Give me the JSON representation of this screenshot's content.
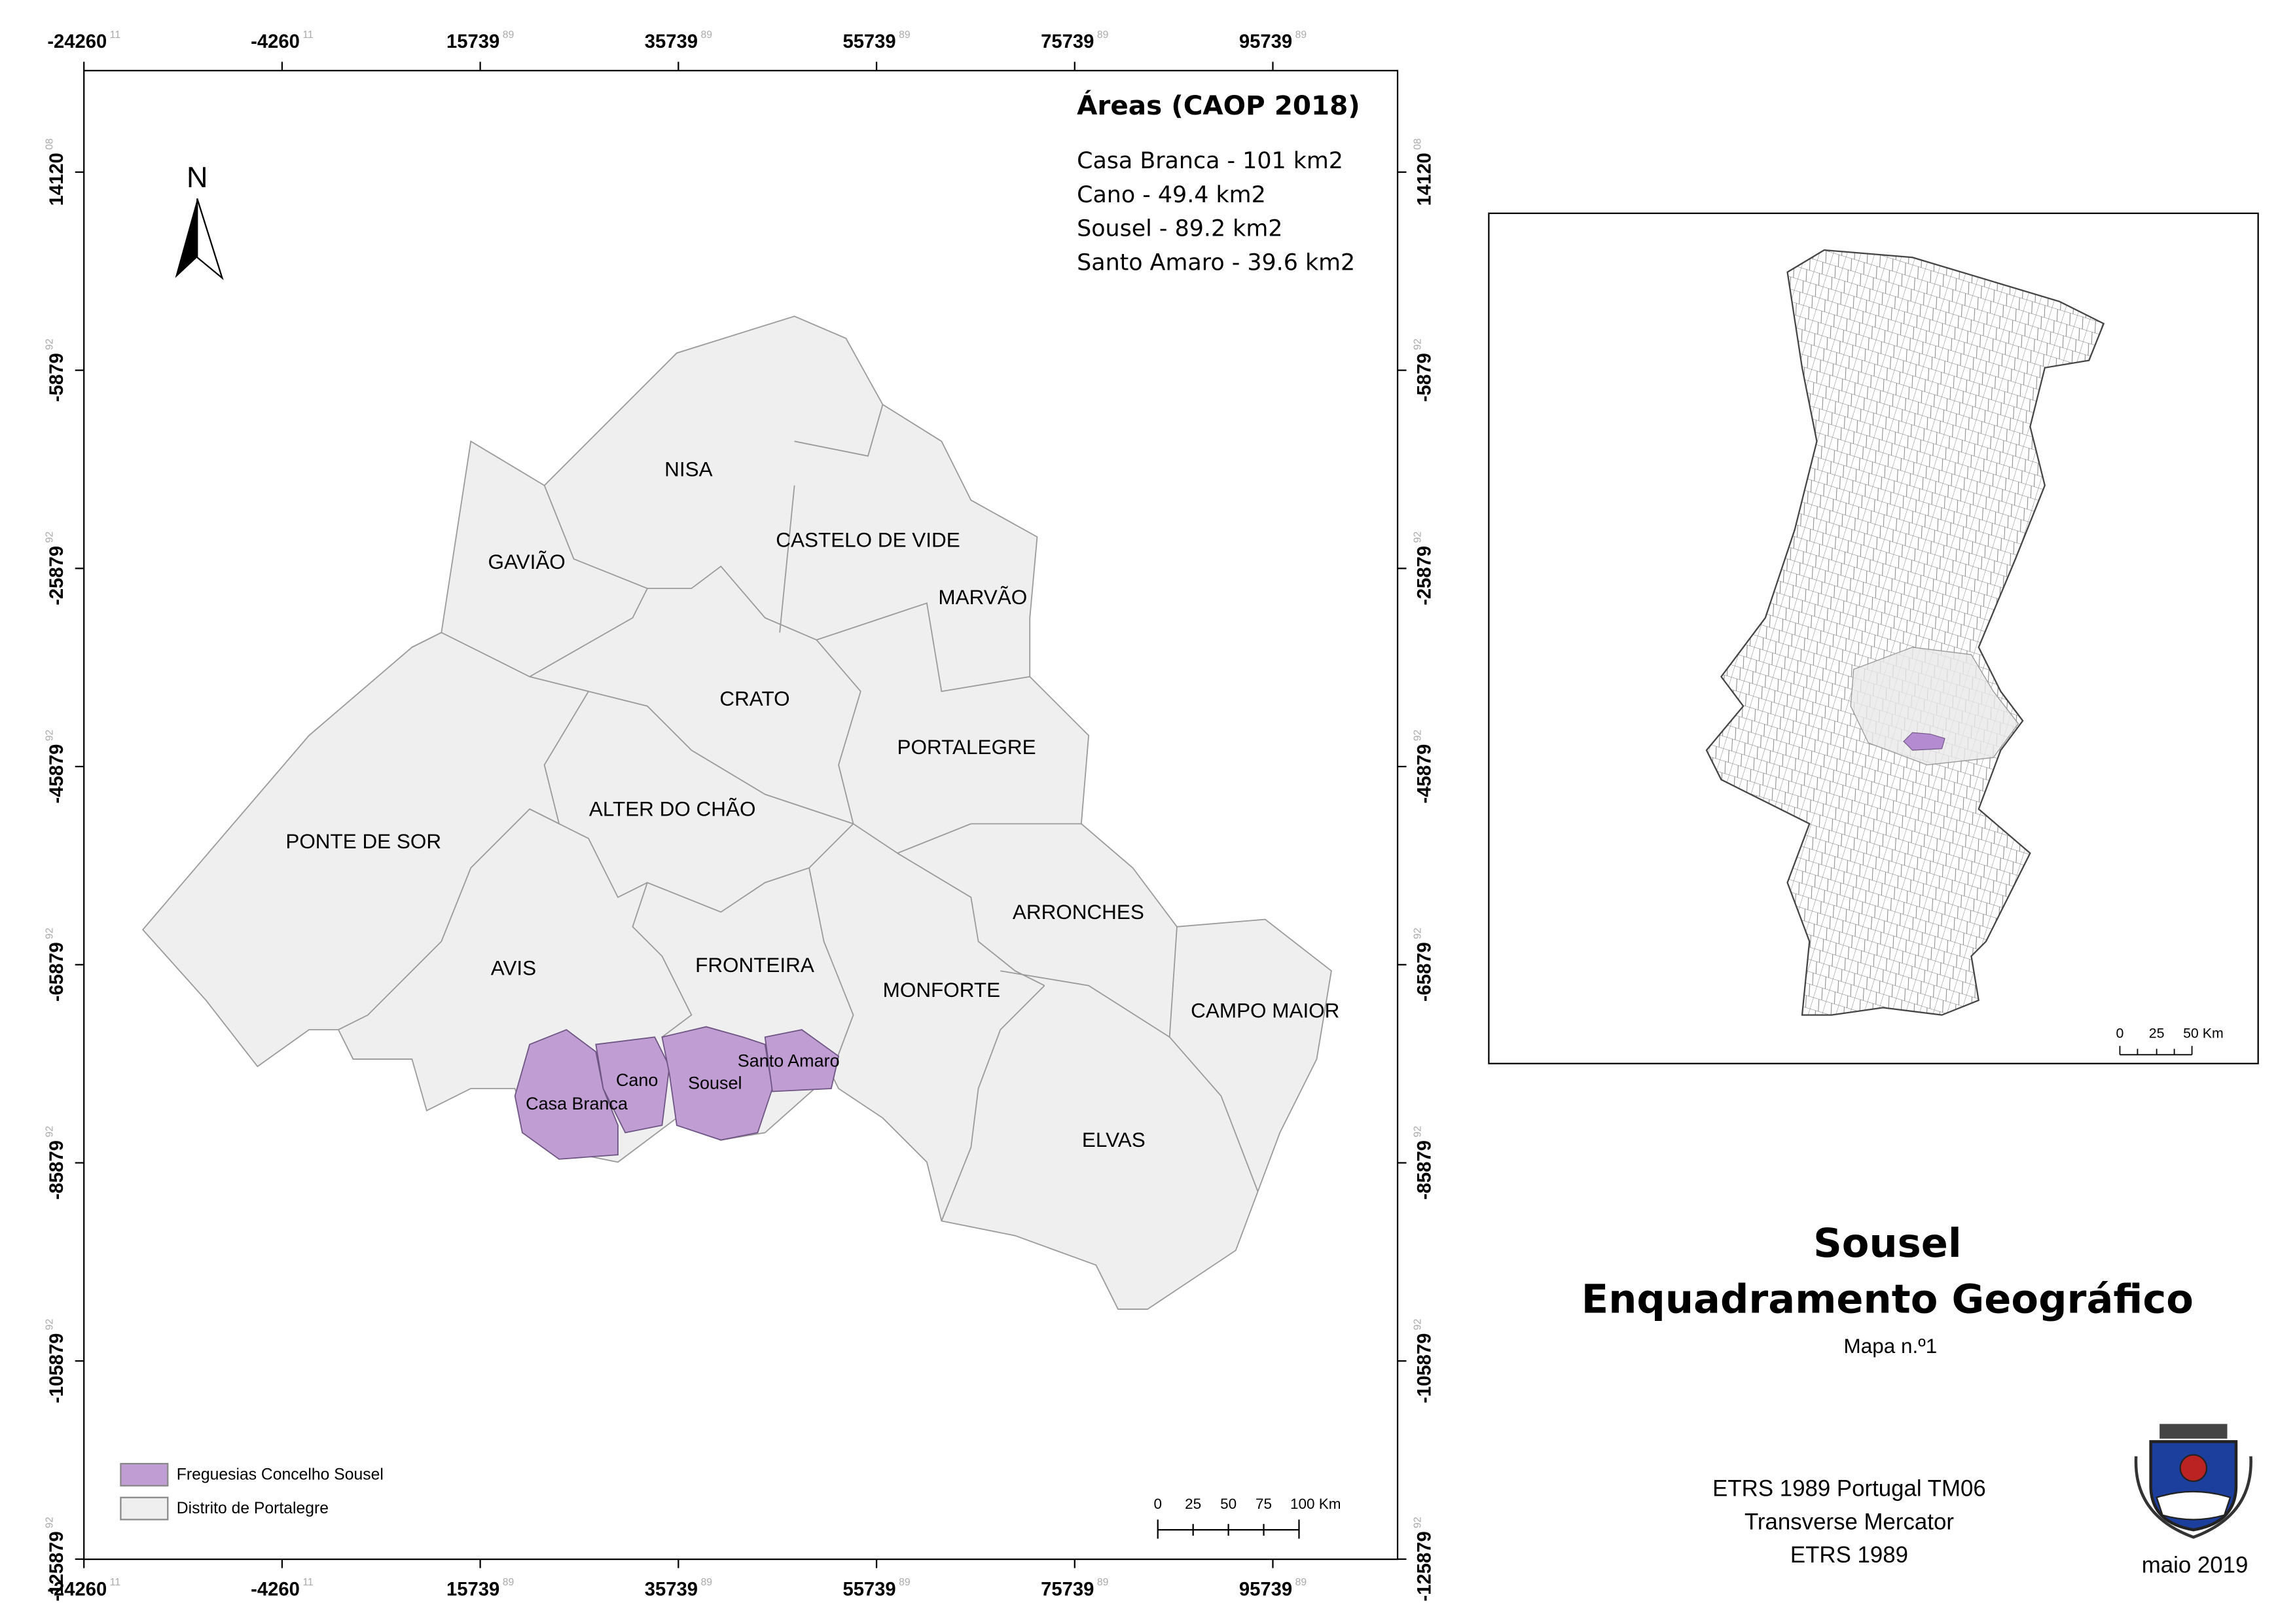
{
  "map": {
    "x_ticks": [
      {
        "main": "-24260",
        "sup": "11"
      },
      {
        "main": "-4260",
        "sup": "11"
      },
      {
        "main": "15739",
        "sup": "89"
      },
      {
        "main": "35739",
        "sup": "89"
      },
      {
        "main": "55739",
        "sup": "89"
      },
      {
        "main": "75739",
        "sup": "89"
      },
      {
        "main": "95739",
        "sup": "89"
      }
    ],
    "y_ticks": [
      {
        "main": "14120",
        "sup": "08"
      },
      {
        "main": "-5879",
        "sup": "92"
      },
      {
        "main": "-25879",
        "sup": "92"
      },
      {
        "main": "-45879",
        "sup": "92"
      },
      {
        "main": "-65879",
        "sup": "92"
      },
      {
        "main": "-85879",
        "sup": "92"
      },
      {
        "main": "-105879",
        "sup": "92"
      },
      {
        "main": "-125879",
        "sup": "92"
      }
    ],
    "areas": {
      "title": "Áreas (CAOP 2018)",
      "items": [
        "Casa Branca - 101 km2",
        "Cano - 49.4 km2",
        "Sousel - 89.2 km2",
        "Santo Amaro - 39.6 km2"
      ]
    },
    "north": "N",
    "municipalities": [
      "NISA",
      "GAVIÃO",
      "CASTELO DE VIDE",
      "MARVÃO",
      "CRATO",
      "PORTALEGRE",
      "ALTER DO CHÃO",
      "PONTE DE SOR",
      "AVIS",
      "FRONTEIRA",
      "ARRONCHES",
      "MONFORTE",
      "CAMPO MAIOR",
      "ELVAS"
    ],
    "parishes": [
      "Casa Branca",
      "Cano",
      "Sousel",
      "Santo Amaro"
    ],
    "legend": [
      "Freguesias Concelho Sousel",
      "Distrito de Portalegre"
    ],
    "scale": [
      "0",
      "25",
      "50",
      "75",
      "100 Km"
    ]
  },
  "inset": {
    "scale": [
      "0",
      "25",
      "50 Km"
    ]
  },
  "title": {
    "name": "Sousel",
    "subtitle": "Enquadramento Geográfico",
    "map_number": "Mapa n.º1"
  },
  "projection": [
    "ETRS 1989 Portugal TM06",
    "Transverse Mercator",
    "ETRS 1989"
  ],
  "date": "maio 2019"
}
